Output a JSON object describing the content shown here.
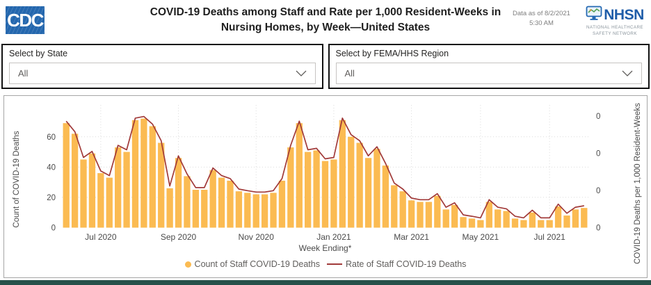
{
  "header": {
    "cdc_logo_text": "CDC",
    "title": "COVID-19 Deaths among Staff and Rate per 1,000 Resident-Weeks in Nursing Homes, by Week—United States",
    "data_asof_line1": "Data as of 8/2/2021",
    "data_asof_line2": "5:30 AM",
    "nhsn_acronym": "NHSN",
    "nhsn_subtitle_line1": "NATIONAL HEALTHCARE",
    "nhsn_subtitle_line2": "SAFETY NETWORK"
  },
  "filters": [
    {
      "label": "Select by State",
      "value": "All"
    },
    {
      "label": "Select by FEMA/HHS Region",
      "value": "All"
    }
  ],
  "chart_data": {
    "type": "bar",
    "title": "",
    "xlabel": "Week Ending*",
    "ylabel_left": "Count of COVID-19 Deaths",
    "ylabel_right": "COVID-19 Deaths per 1,000 Resident-Weeks",
    "ylim_left": [
      0,
      81
    ],
    "ylim_right": [
      0,
      0.069
    ],
    "y_left_ticks": [
      0,
      20,
      40,
      60
    ],
    "y_right_tick_labels": [
      "0",
      "0",
      "0",
      "0"
    ],
    "x_ticks": [
      {
        "label": "Jul 2020",
        "index": 4
      },
      {
        "label": "Sep 2020",
        "index": 13
      },
      {
        "label": "Nov 2020",
        "index": 22
      },
      {
        "label": "Jan 2021",
        "index": 31
      },
      {
        "label": "Mar 2021",
        "index": 40
      },
      {
        "label": "May 2021",
        "index": 48
      },
      {
        "label": "Jul 2021",
        "index": 56
      }
    ],
    "grid": "dotted",
    "legend_position": "bottom",
    "series": [
      {
        "name": "Count of Staff COVID-19 Deaths",
        "type": "bar",
        "color": "#FBBB52",
        "values": [
          69,
          62,
          45,
          49,
          36,
          33,
          53,
          50,
          71,
          72,
          67,
          56,
          26,
          46,
          34,
          25,
          25,
          38,
          33,
          31,
          24,
          23,
          22,
          22,
          23,
          31,
          53,
          69,
          50,
          51,
          44,
          45,
          71,
          60,
          56,
          46,
          52,
          41,
          28,
          24,
          18,
          17,
          17,
          21,
          12,
          15,
          7,
          6,
          5,
          17,
          12,
          11,
          6,
          5,
          10,
          5,
          5,
          14,
          8,
          12,
          13
        ]
      },
      {
        "name": "Rate of Staff COVID-19 Deaths",
        "type": "line",
        "color": "#A13A39",
        "values": [
          0.0599,
          0.054,
          0.0395,
          0.0429,
          0.0319,
          0.0293,
          0.0463,
          0.0438,
          0.0616,
          0.0625,
          0.0582,
          0.0489,
          0.0234,
          0.0404,
          0.0302,
          0.0225,
          0.0225,
          0.0336,
          0.0293,
          0.0276,
          0.0217,
          0.0208,
          0.02,
          0.02,
          0.0208,
          0.0276,
          0.0463,
          0.0599,
          0.0438,
          0.0446,
          0.0387,
          0.0395,
          0.0616,
          0.0523,
          0.0489,
          0.0404,
          0.0455,
          0.0361,
          0.0251,
          0.0217,
          0.0166,
          0.0157,
          0.0157,
          0.0191,
          0.0115,
          0.014,
          0.0072,
          0.0064,
          0.0055,
          0.0157,
          0.0115,
          0.0106,
          0.0064,
          0.0055,
          0.0098,
          0.0055,
          0.0055,
          0.0132,
          0.0081,
          0.0115,
          0.0123
        ]
      }
    ]
  },
  "colors": {
    "bar": "#FBBB52",
    "line": "#A13A39",
    "cdc_blue": "#2467AE",
    "nhsn_blue": "#1F5DA9",
    "bottom_bar": "#27514A",
    "tick_text": "#4a4a4a"
  }
}
